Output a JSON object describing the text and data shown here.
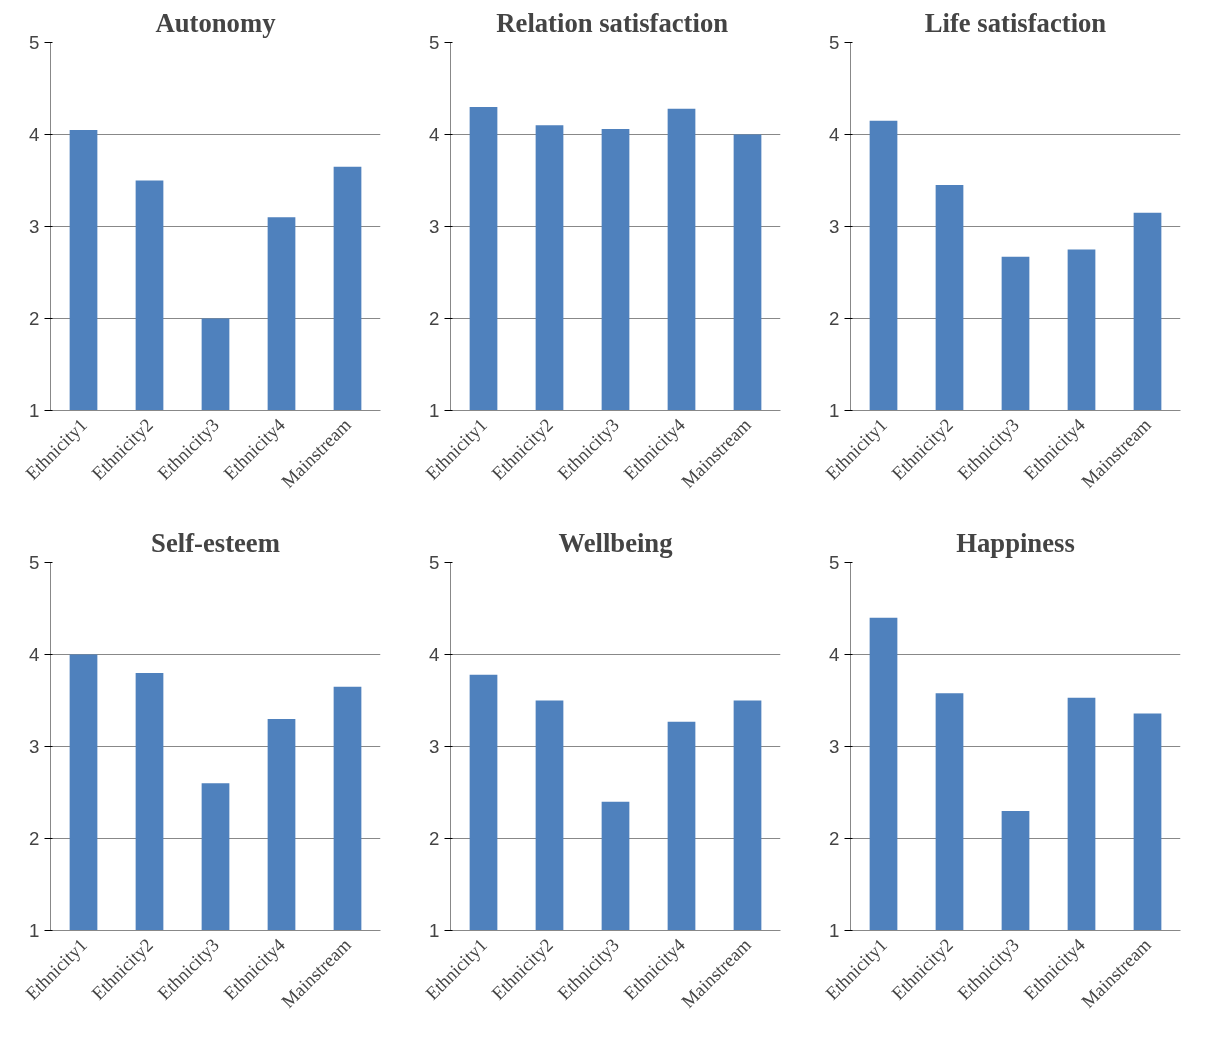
{
  "chart_data": [
    {
      "type": "bar",
      "title": "Autonomy",
      "categories": [
        "Ethnicity1",
        "Ethnicity2",
        "Ethnicity3",
        "Ethnicity4",
        "Mainstream"
      ],
      "values": [
        4.05,
        3.5,
        2.0,
        3.1,
        3.65
      ],
      "color": "#4f81bd",
      "ylim": [
        1,
        5
      ],
      "yticks": [
        1,
        2,
        3,
        4,
        5
      ],
      "grid": "y"
    },
    {
      "type": "bar",
      "title": "Relation  satisfaction",
      "categories": [
        "Ethnicity1",
        "Ethnicity2",
        "Ethnicity3",
        "Ethnicity4",
        "Mainstream"
      ],
      "values": [
        4.3,
        4.1,
        4.06,
        4.28,
        4.0
      ],
      "color": "#4f81bd",
      "ylim": [
        1,
        5
      ],
      "yticks": [
        1,
        2,
        3,
        4,
        5
      ],
      "grid": "y"
    },
    {
      "type": "bar",
      "title": "Life satisfaction",
      "categories": [
        "Ethnicity1",
        "Ethnicity2",
        "Ethnicity3",
        "Ethnicity4",
        "Mainstream"
      ],
      "values": [
        4.15,
        3.45,
        2.67,
        2.75,
        3.15
      ],
      "color": "#4f81bd",
      "ylim": [
        1,
        5
      ],
      "yticks": [
        1,
        2,
        3,
        4,
        5
      ],
      "grid": "y"
    },
    {
      "type": "bar",
      "title": "Self-esteem",
      "categories": [
        "Ethnicity1",
        "Ethnicity2",
        "Ethnicity3",
        "Ethnicity4",
        "Mainstream"
      ],
      "values": [
        4.0,
        3.8,
        2.6,
        3.3,
        3.65
      ],
      "color": "#4f81bd",
      "ylim": [
        1,
        5
      ],
      "yticks": [
        1,
        2,
        3,
        4,
        5
      ],
      "grid": "y"
    },
    {
      "type": "bar",
      "title": "Wellbeing",
      "categories": [
        "Ethnicity1",
        "Ethnicity2",
        "Ethnicity3",
        "Ethnicity4",
        "Mainstream"
      ],
      "values": [
        3.78,
        3.5,
        2.4,
        3.27,
        3.5
      ],
      "color": "#4f81bd",
      "ylim": [
        1,
        5
      ],
      "yticks": [
        1,
        2,
        3,
        4,
        5
      ],
      "grid": "y"
    },
    {
      "type": "bar",
      "title": "Happiness",
      "categories": [
        "Ethnicity1",
        "Ethnicity2",
        "Ethnicity3",
        "Ethnicity4",
        "Mainstream"
      ],
      "values": [
        4.4,
        3.58,
        2.3,
        3.53,
        3.36
      ],
      "color": "#4f81bd",
      "ylim": [
        1,
        5
      ],
      "yticks": [
        1,
        2,
        3,
        4,
        5
      ],
      "grid": "y"
    }
  ]
}
